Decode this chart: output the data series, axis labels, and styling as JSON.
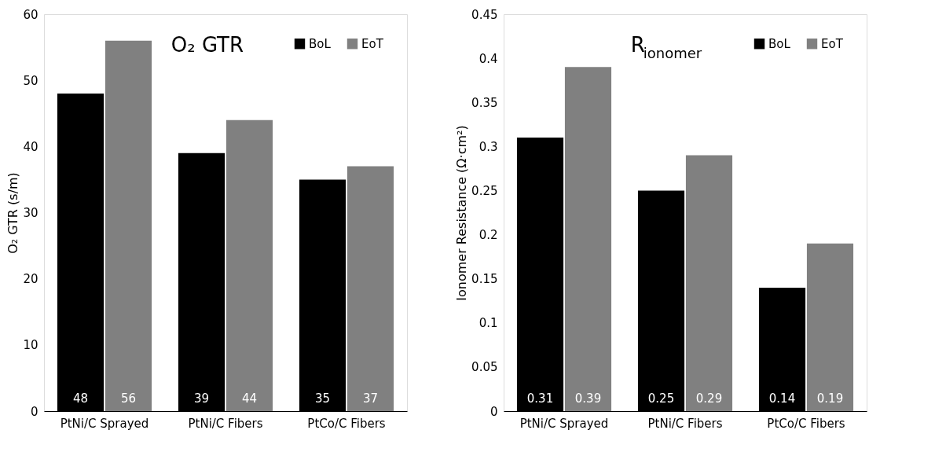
{
  "chart_data": [
    {
      "type": "bar",
      "title": "O₂ GTR",
      "ylabel": "O₂ GTR (s/m)",
      "categories": [
        "PtNi/C Sprayed",
        "PtNi/C Fibers",
        "PtCo/C Fibers"
      ],
      "series": [
        {
          "name": "BoL",
          "color": "#000000",
          "values": [
            48,
            39,
            35
          ]
        },
        {
          "name": "EoT",
          "color": "#808080",
          "values": [
            56,
            44,
            37
          ]
        }
      ],
      "ylim": [
        0,
        60
      ],
      "yticks": [
        0,
        10,
        20,
        30,
        40,
        50,
        60
      ],
      "grid": false,
      "legend": "top right",
      "data_labels": true
    },
    {
      "type": "bar",
      "title": "R$_{ionomer}$",
      "ylabel": "Ionomer Resistance (Ω·cm²)",
      "categories": [
        "PtNi/C Sprayed",
        "PtNi/C Fibers",
        "PtCo/C Fibers"
      ],
      "series": [
        {
          "name": "BoL",
          "color": "#000000",
          "values": [
            0.31,
            0.25,
            0.14
          ]
        },
        {
          "name": "EoT",
          "color": "#808080",
          "values": [
            0.39,
            0.29,
            0.19
          ]
        }
      ],
      "ylim": [
        0,
        0.45
      ],
      "yticks": [
        0,
        0.05,
        0.1,
        0.15,
        0.2,
        0.25,
        0.3,
        0.35,
        0.4,
        0.45
      ],
      "grid": false,
      "legend": "top right",
      "data_labels": true
    }
  ]
}
